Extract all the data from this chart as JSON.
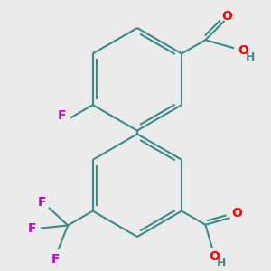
{
  "bg_color": "#ebebeb",
  "bond_color": "#3a8a8a",
  "bond_width": 1.5,
  "atom_colors": {
    "O": "#ff0000",
    "F": "#cc00cc",
    "H": "#4a8888"
  },
  "font_size": 10,
  "fig_size": [
    3.0,
    3.0
  ],
  "dpi": 100
}
